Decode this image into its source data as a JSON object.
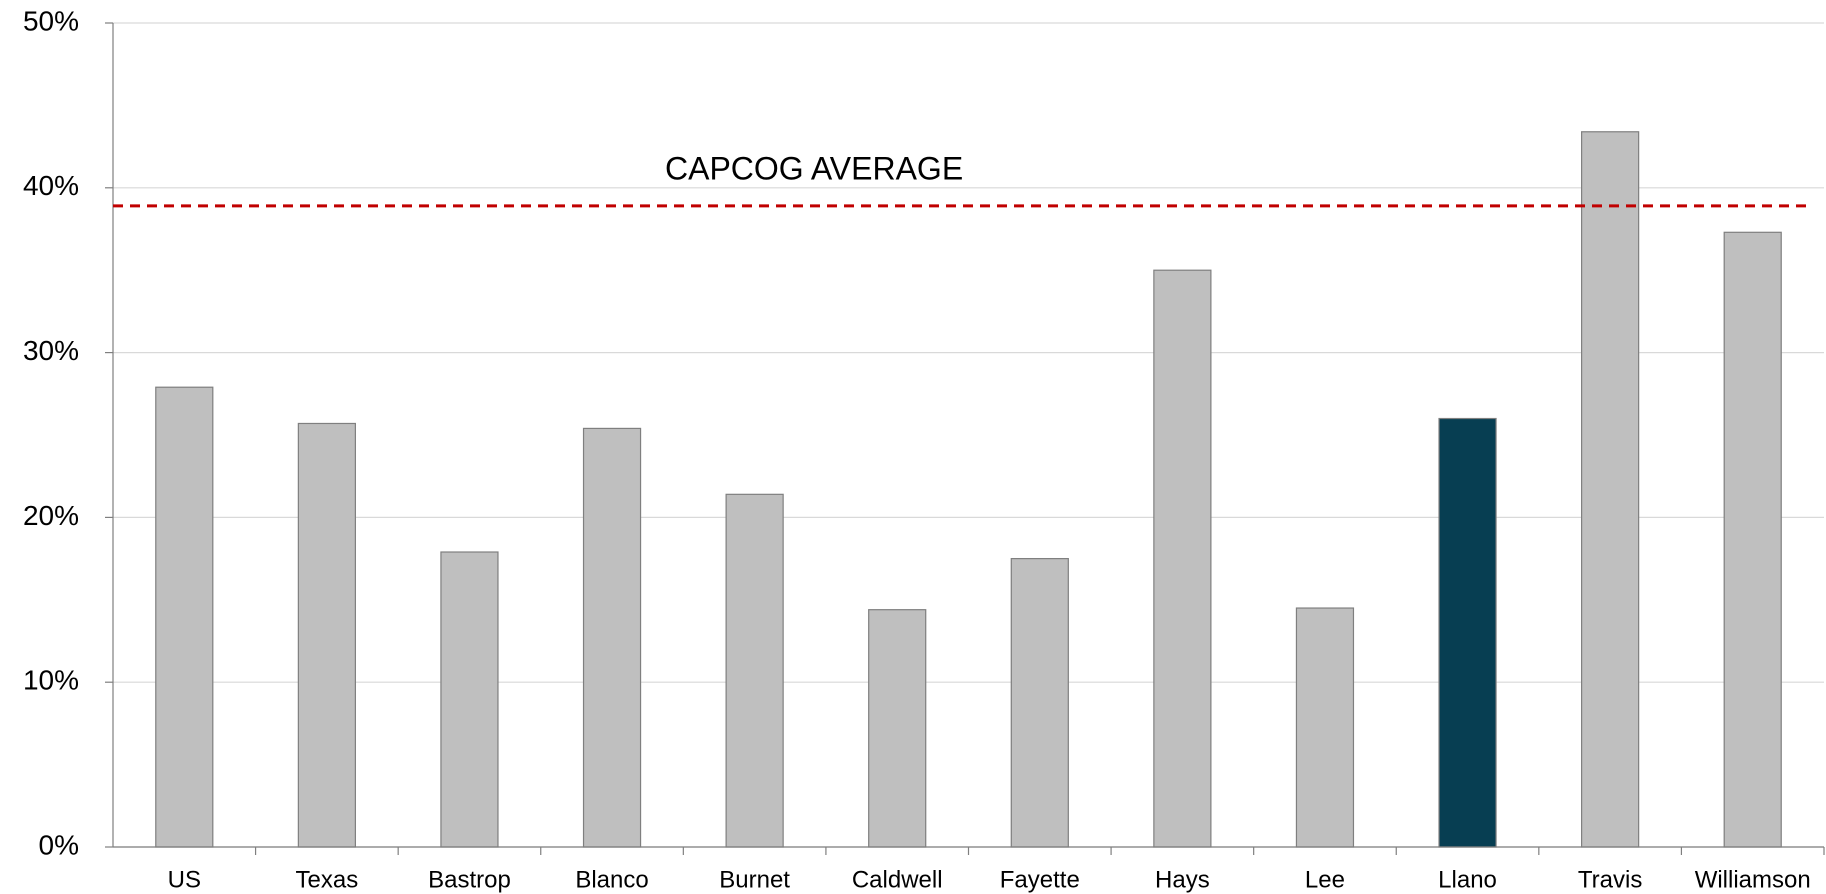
{
  "chart_data": {
    "type": "bar",
    "categories": [
      "US",
      "Texas",
      "Bastrop",
      "Blanco",
      "Burnet",
      "Caldwell",
      "Fayette",
      "Hays",
      "Lee",
      "Llano",
      "Travis",
      "Williamson"
    ],
    "values": [
      27.9,
      25.7,
      17.9,
      25.4,
      21.4,
      14.4,
      17.5,
      35.0,
      14.5,
      26.0,
      43.4,
      37.3
    ],
    "colors": [
      "#bfbfbf",
      "#bfbfbf",
      "#bfbfbf",
      "#bfbfbf",
      "#bfbfbf",
      "#bfbfbf",
      "#bfbfbf",
      "#bfbfbf",
      "#bfbfbf",
      "#073e52",
      "#bfbfbf",
      "#bfbfbf"
    ],
    "ylim": [
      0,
      50
    ],
    "yticks": [
      {
        "value": 0,
        "label": "0%"
      },
      {
        "value": 10,
        "label": "10%"
      },
      {
        "value": 20,
        "label": "20%"
      },
      {
        "value": 30,
        "label": "30%"
      },
      {
        "value": 40,
        "label": "40%"
      },
      {
        "value": 50,
        "label": "50%"
      }
    ],
    "grid": true,
    "reference_line": {
      "label": "CAPCOG AVERAGE",
      "value": 38.9,
      "color": "#c00000"
    }
  }
}
